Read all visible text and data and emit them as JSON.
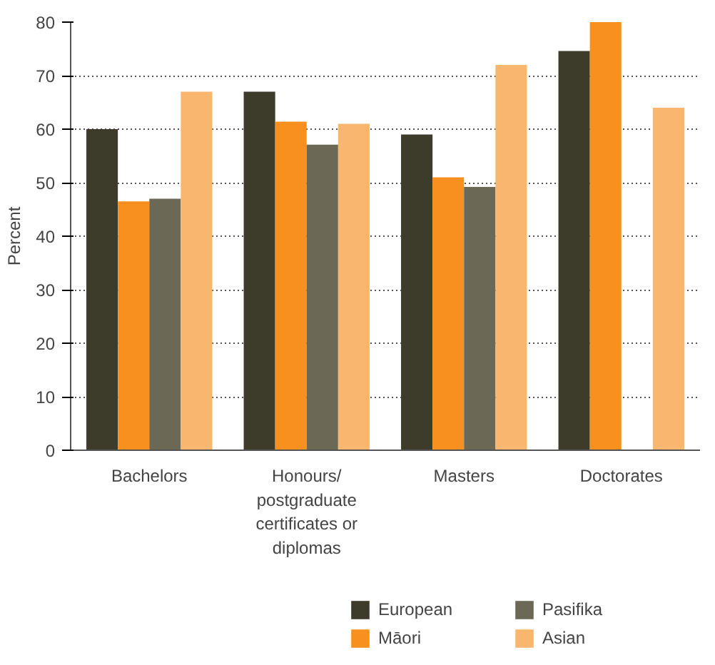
{
  "chart_data": {
    "type": "bar",
    "ylabel": "Percent",
    "categories": [
      "Bachelors",
      "Honours/ postgraduate certificates or diplomas",
      "Masters",
      "Doctorates"
    ],
    "series": [
      {
        "name": "European",
        "color": "#3d3b2a",
        "values": [
          60,
          67,
          59,
          74.6
        ]
      },
      {
        "name": "Māori",
        "color": "#f7901e",
        "values": [
          46.5,
          61.4,
          51,
          80
        ]
      },
      {
        "name": "Pasifika",
        "color": "#6b6956",
        "values": [
          47,
          57.1,
          49.2,
          null
        ]
      },
      {
        "name": "Asian",
        "color": "#f9b66e",
        "values": [
          67,
          61,
          72,
          64
        ]
      }
    ],
    "ylim": [
      0,
      80
    ],
    "yticks": [
      0,
      10,
      20,
      30,
      40,
      50,
      60,
      70,
      80
    ],
    "grid": "y",
    "legend": "bottom"
  }
}
